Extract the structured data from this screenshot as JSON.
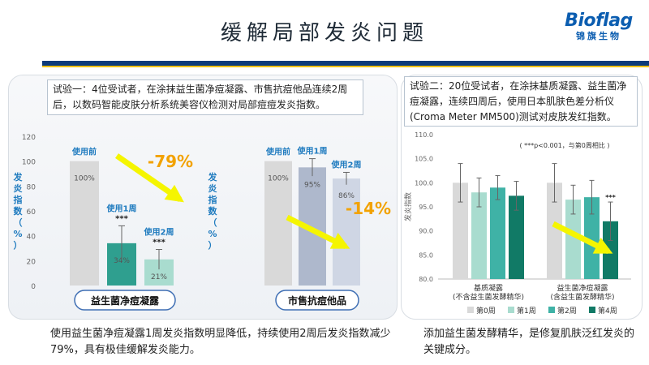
{
  "page": {
    "title": "缓解局部发炎问题",
    "logo_word": "Bioflag",
    "logo_sub": "锦旗生物",
    "desc_left": "试验一：4位受试者，在涂抹益生菌净痘凝露、市售抗痘他品连续2周后，以数码智能皮肤分析系统美容仪检测对局部痘痘发炎指数。",
    "desc_right": "试验二：20位受试者，在涂抹基质凝露、益生菌净痘凝露，连续四周后，使用日本肌肤色差分析仪(Croma Meter MM500)测试对皮肤发红指数。",
    "caption_left": "使用益生菌净痘凝露1周发炎指数明显降低，持续使用2周后发炎指数减少79%，具有极佳缓解发炎能力。",
    "caption_right": "添加益生菌发酵精华，是修复肌肤泛红发炎的关键成分。"
  },
  "chart_data": [
    {
      "type": "bar",
      "ylabel": "发炎指数（%）",
      "ylim": [
        0,
        120
      ],
      "yticks": [
        "0",
        "20",
        "40",
        "60",
        "80",
        "100",
        "120"
      ],
      "categories": [
        "使用前",
        "使用1周",
        "使用2周"
      ],
      "values": [
        100,
        34,
        21
      ],
      "value_labels": [
        "100%",
        "34%",
        "21%"
      ],
      "significance": [
        "",
        "***",
        "***"
      ],
      "colors": [
        "#d9d9d9",
        "#2f9f8f",
        "#a9dccf"
      ],
      "errors": [
        0,
        14,
        8
      ],
      "annotation": "-79%",
      "product_label": "益生菌净痘凝露"
    },
    {
      "type": "bar",
      "ylabel": "发炎指数（%）",
      "ylim": [
        0,
        120
      ],
      "categories": [
        "使用前",
        "使用1周",
        "使用2周"
      ],
      "values": [
        100,
        95,
        86
      ],
      "value_labels": [
        "100%",
        "95%",
        "86%"
      ],
      "colors": [
        "#d9d9d9",
        "#aeb8cc",
        "#cfd6e4"
      ],
      "errors": [
        0,
        7,
        5
      ],
      "annotation": "-14%",
      "product_label": "市售抗痘他品"
    },
    {
      "type": "bar",
      "ylabel": "发炎指数",
      "ylim": [
        80,
        110
      ],
      "yticks": [
        "80.0",
        "85.0",
        "90.0",
        "95.0",
        "100.0",
        "105.0",
        "110.0"
      ],
      "note": "( ***p<0.001，与第0周相比 )",
      "groups": [
        "基质凝露\n(不含益生菌发酵精华)",
        "益生菌净痘凝露\n(含益生菌发酵精华)"
      ],
      "series": [
        {
          "name": "第0周",
          "color": "#d9d9d9",
          "values": [
            100.0,
            100.0
          ]
        },
        {
          "name": "第1周",
          "color": "#a9dccf",
          "values": [
            98.0,
            96.5
          ]
        },
        {
          "name": "第2周",
          "color": "#3fb2a6",
          "values": [
            99.0,
            97.0
          ]
        },
        {
          "name": "第4周",
          "color": "#117a66",
          "values": [
            97.3,
            92.0
          ]
        }
      ],
      "errors": [
        [
          4.0,
          3.0,
          2.5,
          3.0
        ],
        [
          4.0,
          3.0,
          3.5,
          4.0
        ]
      ],
      "significance_label": "***"
    }
  ]
}
